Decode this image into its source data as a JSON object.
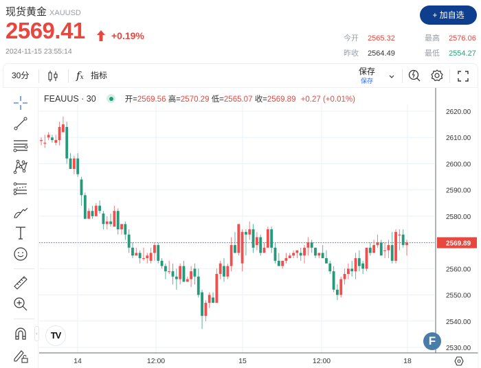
{
  "header": {
    "name": "现货黄金",
    "symbol": "XAUUSD",
    "price": "2569.41",
    "change_pct": "+0.19%",
    "timestamp": "2024-11-15 23:55:14",
    "add_watchlist_label": "+ 加自选"
  },
  "stats": {
    "open_label": "今开",
    "open_value": "2565.32",
    "prev_close_label": "昨收",
    "prev_close_value": "2564.49",
    "high_label": "最高",
    "high_value": "2576.06",
    "low_label": "最低",
    "low_value": "2554.27"
  },
  "toolbar": {
    "interval": "30分",
    "indicators_label": "指标",
    "save_label": "保存",
    "save_sub_label": "保存"
  },
  "legend": {
    "symbol_interval": "FEAUUS · 30",
    "open_label": "开=",
    "open_value": "2569.56",
    "high_label": "高=",
    "high_value": "2570.29",
    "low_label": "低=",
    "low_value": "2565.07",
    "close_label": "收=",
    "close_value": "2569.89",
    "change": "+0.27 (+0.01%)"
  },
  "colors": {
    "up": "#ef4f4f",
    "down": "#26997a",
    "accent": "#0d3f8e",
    "last_price_bg": "#e8473f"
  },
  "left_tools": [
    "crosshair",
    "trend-line",
    "horizontal-lines",
    "pattern",
    "fib-retracement",
    "brush",
    "text",
    "emoji",
    "ruler",
    "zoom-in",
    "magnet",
    "lock-drawings"
  ],
  "chart_data": {
    "type": "candlestick",
    "title": "FEAUUS · 30",
    "ylabel": "",
    "ylim": [
      2526,
      2626
    ],
    "y_ticks": [
      2620,
      2610,
      2600,
      2590,
      2580,
      2570,
      2560,
      2550,
      2540,
      2530
    ],
    "y_tick_labels": [
      "2620.00",
      "2610.00",
      "2600.00",
      "2590.00",
      "2580.00",
      "2560.00",
      "2550.00",
      "2540.00",
      "2530.00"
    ],
    "x_tick_labels": [
      "14",
      "12:00",
      "15",
      "12:00",
      "18"
    ],
    "x_tick_positions": [
      113,
      227,
      353,
      468,
      593
    ],
    "last_price": 2569.89,
    "last_price_label": "2569.89",
    "candles": [
      [
        2609,
        2610,
        2607,
        2609
      ],
      [
        2608,
        2611,
        2606,
        2608
      ],
      [
        2610,
        2612,
        2609,
        2611
      ],
      [
        2610,
        2611,
        2608,
        2609
      ],
      [
        2608,
        2611,
        2607,
        2609
      ],
      [
        2609,
        2616,
        2607,
        2614
      ],
      [
        2612,
        2618,
        2612,
        2615
      ],
      [
        2614,
        2616,
        2600,
        2602
      ],
      [
        2602,
        2604,
        2598,
        2598
      ],
      [
        2598,
        2603,
        2596,
        2602
      ],
      [
        2602,
        2604,
        2595,
        2596
      ],
      [
        2594,
        2595,
        2584,
        2588
      ],
      [
        2588,
        2589,
        2580,
        2579
      ],
      [
        2579,
        2583,
        2580,
        2582
      ],
      [
        2582,
        2584,
        2579,
        2580
      ],
      [
        2580,
        2585,
        2580,
        2584
      ],
      [
        2584,
        2586,
        2581,
        2582
      ],
      [
        2581,
        2582,
        2575,
        2577
      ],
      [
        2577,
        2580,
        2575,
        2578
      ],
      [
        2578,
        2581,
        2576,
        2577
      ],
      [
        2576,
        2584,
        2576,
        2582
      ],
      [
        2582,
        2583,
        2573,
        2575
      ],
      [
        2575,
        2577,
        2573,
        2577
      ],
      [
        2577,
        2578,
        2571,
        2573
      ],
      [
        2573,
        2575,
        2566,
        2568
      ],
      [
        2568,
        2570,
        2564,
        2565
      ],
      [
        2565,
        2568,
        2565,
        2566
      ],
      [
        2566,
        2567,
        2562,
        2564
      ],
      [
        2564,
        2568,
        2563,
        2564
      ],
      [
        2564,
        2566,
        2562,
        2565
      ],
      [
        2563,
        2568,
        2562,
        2566
      ],
      [
        2566,
        2570,
        2563,
        2569
      ],
      [
        2569,
        2570,
        2562,
        2563
      ],
      [
        2563,
        2564,
        2560,
        2561
      ],
      [
        2561,
        2562,
        2556,
        2559
      ],
      [
        2559,
        2563,
        2558,
        2559
      ],
      [
        2559,
        2562,
        2554,
        2557
      ],
      [
        2557,
        2560,
        2552,
        2556
      ],
      [
        2556,
        2562,
        2554,
        2561
      ],
      [
        2561,
        2563,
        2555,
        2555
      ],
      [
        2555,
        2557,
        2555,
        2556
      ],
      [
        2556,
        2561,
        2553,
        2559
      ],
      [
        2560,
        2562,
        2554,
        2557
      ],
      [
        2557,
        2560,
        2549,
        2550
      ],
      [
        2551,
        2552,
        2537,
        2542
      ],
      [
        2542,
        2548,
        2540,
        2547
      ],
      [
        2547,
        2551,
        2545,
        2550
      ],
      [
        2549,
        2551,
        2548,
        2547
      ],
      [
        2547,
        2560,
        2547,
        2558
      ],
      [
        2558,
        2563,
        2556,
        2562
      ],
      [
        2561,
        2564,
        2555,
        2557
      ],
      [
        2557,
        2562,
        2556,
        2561
      ],
      [
        2561,
        2572,
        2559,
        2569
      ],
      [
        2569,
        2574,
        2566,
        2566
      ],
      [
        2566,
        2573,
        2565,
        2577
      ],
      [
        2562,
        2575,
        2559,
        2574
      ],
      [
        2574,
        2575,
        2565,
        2573
      ],
      [
        2573,
        2578,
        2571,
        2575
      ],
      [
        2575,
        2577,
        2566,
        2568
      ],
      [
        2569,
        2574,
        2567,
        2572
      ],
      [
        2572,
        2573,
        2565,
        2566
      ],
      [
        2566,
        2570,
        2567,
        2568
      ],
      [
        2568,
        2576,
        2574,
        2575
      ],
      [
        2575,
        2576,
        2566,
        2568
      ],
      [
        2568,
        2570,
        2562,
        2563
      ],
      [
        2563,
        2566,
        2562,
        2561
      ],
      [
        2561,
        2563,
        2560,
        2563
      ],
      [
        2563,
        2566,
        2562,
        2564
      ],
      [
        2564,
        2566,
        2564,
        2565
      ],
      [
        2565,
        2567,
        2564,
        2566
      ],
      [
        2566,
        2567,
        2564,
        2567
      ],
      [
        2566,
        2568,
        2563,
        2565
      ],
      [
        2565,
        2569,
        2562,
        2568
      ],
      [
        2568,
        2572,
        2565,
        2570
      ],
      [
        2570,
        2571,
        2566,
        2568
      ],
      [
        2568,
        2568,
        2564,
        2565
      ],
      [
        2565,
        2566,
        2564,
        2566
      ],
      [
        2566,
        2569,
        2564,
        2564
      ],
      [
        2564,
        2567,
        2562,
        2562
      ],
      [
        2562,
        2563,
        2558,
        2559
      ],
      [
        2559,
        2561,
        2551,
        2552
      ],
      [
        2552,
        2554,
        2548,
        2550
      ],
      [
        2550,
        2557,
        2549,
        2556
      ],
      [
        2556,
        2560,
        2554,
        2558
      ],
      [
        2558,
        2562,
        2556,
        2560
      ],
      [
        2560,
        2563,
        2557,
        2559
      ],
      [
        2559,
        2566,
        2556,
        2564
      ],
      [
        2564,
        2567,
        2559,
        2561
      ],
      [
        2562,
        2563,
        2558,
        2560
      ],
      [
        2560,
        2567,
        2559,
        2568
      ],
      [
        2568,
        2570,
        2565,
        2566
      ],
      [
        2566,
        2571,
        2566,
        2569
      ],
      [
        2569,
        2573,
        2568,
        2570
      ],
      [
        2570,
        2571,
        2566,
        2565
      ],
      [
        2567,
        2570,
        2564,
        2567
      ],
      [
        2567,
        2571,
        2564,
        2569
      ],
      [
        2569,
        2574,
        2562,
        2563
      ],
      [
        2563,
        2575,
        2562,
        2574
      ],
      [
        2573,
        2575,
        2567,
        2573
      ],
      [
        2573,
        2575,
        2568,
        2569
      ],
      [
        2569,
        2571,
        2565,
        2570
      ]
    ]
  }
}
